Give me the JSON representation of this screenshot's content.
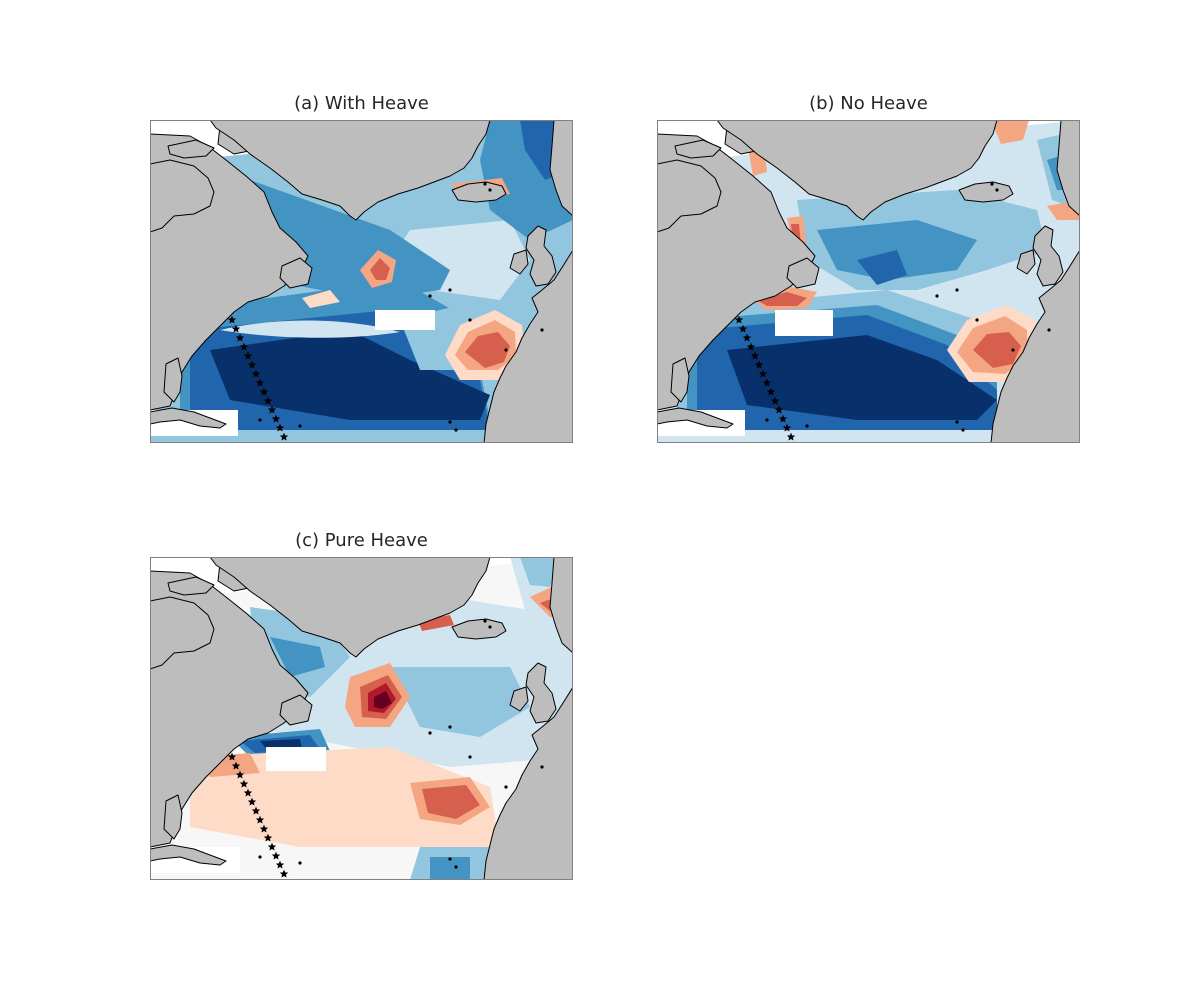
{
  "figure": {
    "panels": [
      {
        "id": "a",
        "title": "(a) With Heave",
        "scheme": "with_heave"
      },
      {
        "id": "b",
        "title": "(b) No Heave",
        "scheme": "no_heave"
      },
      {
        "id": "c",
        "title": "(c) Pure Heave",
        "scheme": "pure_heave"
      }
    ],
    "colors": {
      "land": "#bdbdbd",
      "coast": "#000000",
      "frame": "#808080",
      "deep_blue": "#08306b",
      "blue": "#2166ac",
      "mid_blue": "#4393c3",
      "light_blue": "#92c5de",
      "pale_blue": "#d1e5f0",
      "neutral": "#f7f7f7",
      "pale_red": "#fddbc7",
      "light_red": "#f4a582",
      "red": "#d6604d",
      "dark_red": "#b2182b",
      "deep_red": "#67001f"
    },
    "marker_icon": "star-icon"
  }
}
